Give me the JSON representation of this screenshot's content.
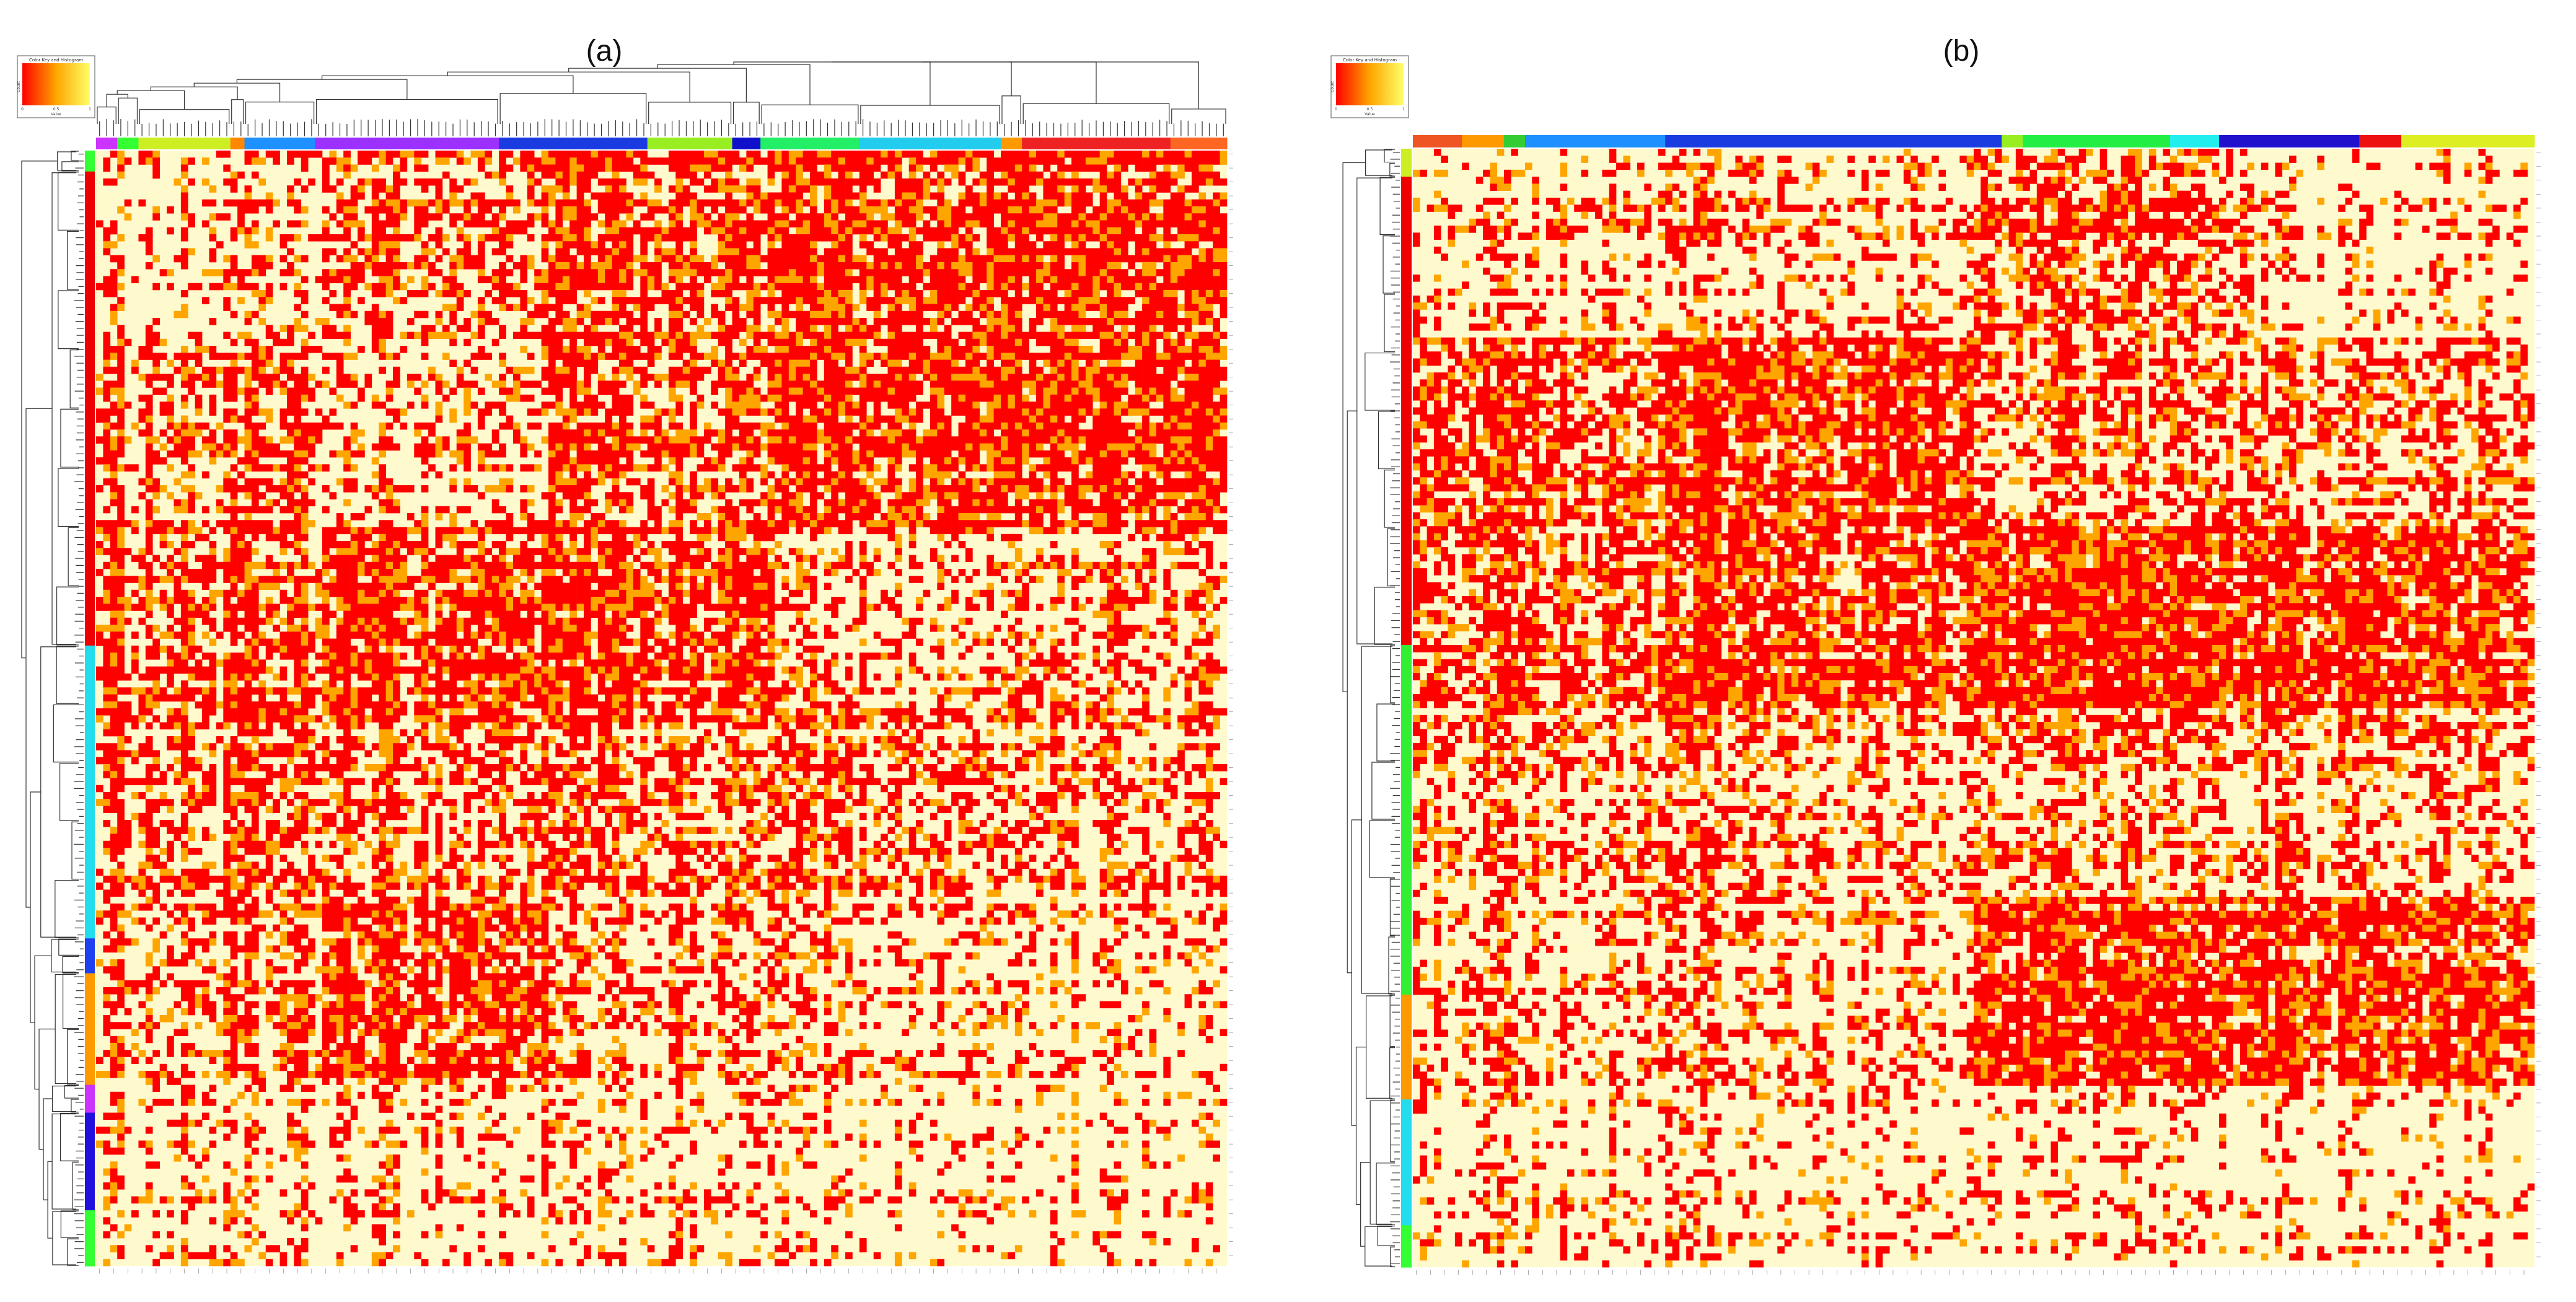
{
  "figure": {
    "description_labels": [
      "(a)",
      "(b)"
    ]
  },
  "colors": {
    "low": "#fffacd",
    "mid": "#ffa500",
    "high": "#ff0000",
    "dendrogram": "#333333"
  },
  "chart_data": [
    {
      "type": "heatmap",
      "title": "(a)",
      "color_key": {
        "title": "Color Key and Histogram",
        "xlabel": "Value",
        "ylabel": "Count",
        "ticks": [
          "0",
          "0.5",
          "1"
        ]
      },
      "row_dendrogram": true,
      "col_dendrogram": true,
      "row_count": 160,
      "col_count": 160,
      "value_levels": [
        0,
        0.5,
        1
      ],
      "col_groups": [
        {
          "color": "#cc33ff",
          "count": 3
        },
        {
          "color": "#33ff33",
          "count": 3
        },
        {
          "color": "#ccee22",
          "count": 13
        },
        {
          "color": "#ff8800",
          "count": 2
        },
        {
          "color": "#1e90ff",
          "count": 10
        },
        {
          "color": "#9b30ff",
          "count": 26
        },
        {
          "color": "#1a3be0",
          "count": 21
        },
        {
          "color": "#99ee22",
          "count": 12
        },
        {
          "color": "#1010cc",
          "count": 4
        },
        {
          "color": "#22ee66",
          "count": 14
        },
        {
          "color": "#22ccee",
          "count": 20
        },
        {
          "color": "#ff9900",
          "count": 3
        },
        {
          "color": "#ee2222",
          "count": 21
        },
        {
          "color": "#ff6622",
          "count": 8
        }
      ],
      "row_groups": [
        {
          "color": "#33ff33",
          "count": 3
        },
        {
          "color": "#ee0000",
          "count": 68
        },
        {
          "color": "#22ddee",
          "count": 42
        },
        {
          "color": "#1e40ee",
          "count": 5
        },
        {
          "color": "#ff9900",
          "count": 16
        },
        {
          "color": "#cc33ff",
          "count": 4
        },
        {
          "color": "#2211dd",
          "count": 14
        },
        {
          "color": "#33ff33",
          "count": 8
        }
      ],
      "block_levels": [
        [
          0.3,
          0.55,
          0.7,
          0.8,
          0.85
        ],
        [
          0.55,
          0.35,
          0.6,
          0.85,
          0.9
        ],
        [
          0.6,
          0.8,
          0.75,
          0.35,
          0.4
        ],
        [
          0.55,
          0.55,
          0.5,
          0.5,
          0.45
        ],
        [
          0.45,
          0.75,
          0.35,
          0.3,
          0.3
        ],
        [
          0.25,
          0.25,
          0.2,
          0.2,
          0.2
        ]
      ]
    },
    {
      "type": "heatmap",
      "title": "(b)",
      "color_key": {
        "title": "Color Key and Histogram",
        "xlabel": "Value",
        "ylabel": "Count",
        "ticks": [
          "0",
          "0.5",
          "1"
        ]
      },
      "row_dendrogram": true,
      "col_dendrogram": false,
      "row_count": 160,
      "col_count": 160,
      "value_levels": [
        0,
        0.5,
        1
      ],
      "col_groups": [
        {
          "color": "#ee5522",
          "count": 7
        },
        {
          "color": "#ff9900",
          "count": 6
        },
        {
          "color": "#33cc33",
          "count": 3
        },
        {
          "color": "#1e90ff",
          "count": 20
        },
        {
          "color": "#1a3be0",
          "count": 48
        },
        {
          "color": "#99ee22",
          "count": 3
        },
        {
          "color": "#22ee44",
          "count": 21
        },
        {
          "color": "#22eeee",
          "count": 7
        },
        {
          "color": "#2211cc",
          "count": 20
        },
        {
          "color": "#ee1111",
          "count": 6
        },
        {
          "color": "#ddee22",
          "count": 19
        }
      ],
      "row_groups": [
        {
          "color": "#ccee22",
          "count": 4
        },
        {
          "color": "#ee0000",
          "count": 67
        },
        {
          "color": "#33ee33",
          "count": 50
        },
        {
          "color": "#ff9900",
          "count": 15
        },
        {
          "color": "#22ddee",
          "count": 18
        },
        {
          "color": "#33ff33",
          "count": 6
        }
      ],
      "block_levels": [
        [
          0.3,
          0.3,
          0.55,
          0.2
        ],
        [
          0.7,
          0.85,
          0.45,
          0.5
        ],
        [
          0.6,
          0.7,
          0.85,
          0.8
        ],
        [
          0.45,
          0.4,
          0.4,
          0.4
        ],
        [
          0.35,
          0.3,
          0.8,
          0.8
        ],
        [
          0.25,
          0.2,
          0.2,
          0.2
        ]
      ]
    }
  ]
}
